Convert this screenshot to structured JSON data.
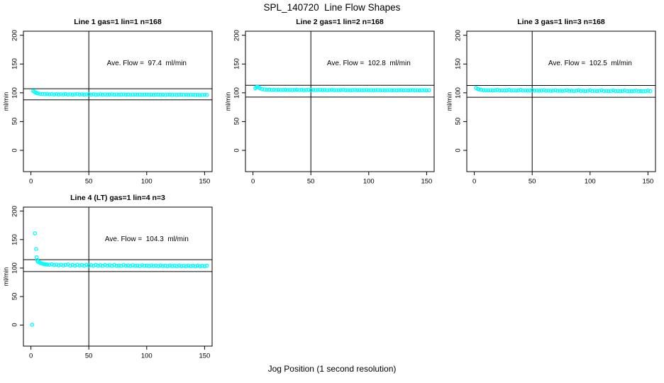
{
  "page": {
    "title": "SPL_140720  Line Flow Shapes",
    "xlabel": "Jog Position (1 second resolution)",
    "background": "#ffffff",
    "point_color": "#00ffff",
    "line_color": "#000000"
  },
  "chart_data": [
    {
      "type": "scatter",
      "title": "Line 1 gas=1 lin=1 n=168",
      "annotation": "Ave. Flow =  97.4  ml/min",
      "annotation_xy": [
        100,
        150
      ],
      "ave_flow_ml_min": 97.4,
      "ylabel": "ml/min",
      "xticks": [
        0,
        50,
        100,
        150
      ],
      "yticks": [
        0,
        50,
        100,
        150,
        200
      ],
      "xlim": [
        -6.5,
        156.5
      ],
      "ylim": [
        -37,
        207
      ],
      "grid": false,
      "vline_x": 50,
      "hlines": [
        107.1,
        87.7
      ],
      "points": [
        [
          2,
          103.2
        ],
        [
          3,
          101.8
        ],
        [
          4,
          100.6
        ],
        [
          5,
          99.6
        ],
        [
          6,
          98.9
        ],
        [
          8,
          98.2
        ],
        [
          10,
          97.9
        ],
        [
          12,
          97.7
        ],
        [
          14,
          97.9
        ],
        [
          16,
          97.4
        ],
        [
          18,
          97.7
        ],
        [
          20,
          97.2
        ],
        [
          22,
          97.6
        ],
        [
          24,
          97.0
        ],
        [
          26,
          97.5
        ],
        [
          28,
          97.2
        ],
        [
          30,
          97.6
        ],
        [
          32,
          97.1
        ],
        [
          34,
          97.4
        ],
        [
          36,
          96.9
        ],
        [
          38,
          97.3
        ],
        [
          40,
          97.6
        ],
        [
          42,
          97.0
        ],
        [
          44,
          97.4
        ],
        [
          46,
          96.8
        ],
        [
          48,
          97.2
        ],
        [
          50,
          97.5
        ],
        [
          52,
          96.9
        ],
        [
          54,
          97.3
        ],
        [
          56,
          96.8
        ],
        [
          58,
          97.1
        ],
        [
          60,
          97.4
        ],
        [
          62,
          96.8
        ],
        [
          64,
          97.2
        ],
        [
          66,
          96.7
        ],
        [
          68,
          97.0
        ],
        [
          70,
          97.3
        ],
        [
          72,
          96.8
        ],
        [
          74,
          97.1
        ],
        [
          76,
          96.6
        ],
        [
          78,
          97.0
        ],
        [
          80,
          97.2
        ],
        [
          82,
          96.7
        ],
        [
          84,
          97.0
        ],
        [
          86,
          96.5
        ],
        [
          88,
          96.9
        ],
        [
          90,
          97.1
        ],
        [
          92,
          96.6
        ],
        [
          94,
          96.9
        ],
        [
          96,
          96.5
        ],
        [
          98,
          96.8
        ],
        [
          100,
          97.0
        ],
        [
          102,
          96.5
        ],
        [
          104,
          96.8
        ],
        [
          106,
          96.4
        ],
        [
          108,
          96.7
        ],
        [
          110,
          96.9
        ],
        [
          112,
          96.4
        ],
        [
          114,
          96.7
        ],
        [
          116,
          96.3
        ],
        [
          118,
          96.6
        ],
        [
          120,
          96.8
        ],
        [
          122,
          96.3
        ],
        [
          124,
          96.6
        ],
        [
          126,
          96.2
        ],
        [
          128,
          96.5
        ],
        [
          130,
          96.7
        ],
        [
          132,
          96.3
        ],
        [
          134,
          96.5
        ],
        [
          136,
          96.2
        ],
        [
          138,
          96.4
        ],
        [
          140,
          96.6
        ],
        [
          142,
          96.2
        ],
        [
          144,
          96.4
        ],
        [
          146,
          96.1
        ],
        [
          148,
          96.3
        ],
        [
          150,
          96.5
        ],
        [
          152,
          96.2
        ]
      ]
    },
    {
      "type": "scatter",
      "title": "Line 2 gas=1 lin=2 n=168",
      "annotation": "Ave. Flow =  102.8  ml/min",
      "annotation_xy": [
        100,
        150
      ],
      "ave_flow_ml_min": 102.8,
      "ylabel": "ml/min",
      "xticks": [
        0,
        50,
        100,
        150
      ],
      "yticks": [
        0,
        50,
        100,
        150,
        200
      ],
      "xlim": [
        -6.5,
        156.5
      ],
      "ylim": [
        -37,
        207
      ],
      "grid": false,
      "vline_x": 50,
      "hlines": [
        113.1,
        92.5
      ],
      "points": [
        [
          2,
          107.8
        ],
        [
          3,
          109.9
        ],
        [
          4,
          110.2
        ],
        [
          5,
          109.3
        ],
        [
          6,
          108.0
        ],
        [
          8,
          106.3
        ],
        [
          10,
          105.8
        ],
        [
          12,
          105.4
        ],
        [
          14,
          105.6
        ],
        [
          16,
          105.1
        ],
        [
          18,
          105.4
        ],
        [
          20,
          104.9
        ],
        [
          22,
          105.3
        ],
        [
          24,
          104.8
        ],
        [
          26,
          105.2
        ],
        [
          28,
          105.4
        ],
        [
          30,
          104.8
        ],
        [
          32,
          105.1
        ],
        [
          34,
          104.7
        ],
        [
          36,
          105.0
        ],
        [
          38,
          105.3
        ],
        [
          40,
          104.7
        ],
        [
          42,
          105.0
        ],
        [
          44,
          104.6
        ],
        [
          46,
          104.9
        ],
        [
          48,
          105.2
        ],
        [
          50,
          104.7
        ],
        [
          52,
          105.0
        ],
        [
          54,
          104.6
        ],
        [
          56,
          104.9
        ],
        [
          58,
          105.1
        ],
        [
          60,
          104.6
        ],
        [
          62,
          104.9
        ],
        [
          64,
          104.5
        ],
        [
          66,
          104.8
        ],
        [
          68,
          105.0
        ],
        [
          70,
          104.6
        ],
        [
          72,
          104.8
        ],
        [
          74,
          104.5
        ],
        [
          76,
          104.7
        ],
        [
          78,
          105.0
        ],
        [
          80,
          104.5
        ],
        [
          82,
          104.8
        ],
        [
          84,
          104.4
        ],
        [
          86,
          104.7
        ],
        [
          88,
          104.9
        ],
        [
          90,
          104.5
        ],
        [
          92,
          104.7
        ],
        [
          94,
          104.4
        ],
        [
          96,
          104.6
        ],
        [
          98,
          104.9
        ],
        [
          100,
          104.4
        ],
        [
          102,
          104.7
        ],
        [
          104,
          104.3
        ],
        [
          106,
          104.6
        ],
        [
          108,
          104.8
        ],
        [
          110,
          104.4
        ],
        [
          112,
          104.6
        ],
        [
          114,
          104.3
        ],
        [
          116,
          104.5
        ],
        [
          118,
          104.8
        ],
        [
          120,
          104.3
        ],
        [
          122,
          104.6
        ],
        [
          124,
          104.2
        ],
        [
          126,
          104.5
        ],
        [
          128,
          104.7
        ],
        [
          130,
          104.3
        ],
        [
          132,
          104.5
        ],
        [
          134,
          104.2
        ],
        [
          136,
          104.4
        ],
        [
          138,
          104.7
        ],
        [
          140,
          104.2
        ],
        [
          142,
          104.5
        ],
        [
          144,
          104.1
        ],
        [
          146,
          104.4
        ],
        [
          148,
          104.6
        ],
        [
          150,
          104.2
        ],
        [
          152,
          104.4
        ]
      ]
    },
    {
      "type": "scatter",
      "title": "Line 3 gas=1 lin=3 n=168",
      "annotation": "Ave. Flow =  102.5  ml/min",
      "annotation_xy": [
        100,
        150
      ],
      "ave_flow_ml_min": 102.5,
      "ylabel": "ml/min",
      "xticks": [
        0,
        50,
        100,
        150
      ],
      "yticks": [
        0,
        50,
        100,
        150,
        200
      ],
      "xlim": [
        -6.5,
        156.5
      ],
      "ylim": [
        -37,
        207
      ],
      "grid": false,
      "vline_x": 50,
      "hlines": [
        112.8,
        92.3
      ],
      "points": [
        [
          1.5,
          108.6
        ],
        [
          3,
          106.8
        ],
        [
          4,
          105.9
        ],
        [
          6,
          105.1
        ],
        [
          8,
          104.6
        ],
        [
          10,
          104.4
        ],
        [
          12,
          104.2
        ],
        [
          14,
          104.5
        ],
        [
          16,
          104.0
        ],
        [
          18,
          104.3
        ],
        [
          20,
          105.2
        ],
        [
          22,
          103.9
        ],
        [
          24,
          104.2
        ],
        [
          26,
          103.8
        ],
        [
          28,
          104.1
        ],
        [
          30,
          105.0
        ],
        [
          32,
          103.8
        ],
        [
          34,
          104.1
        ],
        [
          36,
          103.7
        ],
        [
          38,
          104.0
        ],
        [
          40,
          104.9
        ],
        [
          42,
          103.7
        ],
        [
          44,
          104.0
        ],
        [
          46,
          103.6
        ],
        [
          48,
          103.9
        ],
        [
          50,
          104.8
        ],
        [
          52,
          103.6
        ],
        [
          54,
          103.9
        ],
        [
          56,
          103.5
        ],
        [
          58,
          103.8
        ],
        [
          60,
          104.7
        ],
        [
          62,
          103.5
        ],
        [
          64,
          103.8
        ],
        [
          66,
          103.4
        ],
        [
          68,
          103.7
        ],
        [
          70,
          104.6
        ],
        [
          72,
          103.4
        ],
        [
          74,
          103.7
        ],
        [
          76,
          103.3
        ],
        [
          78,
          103.6
        ],
        [
          80,
          104.5
        ],
        [
          82,
          103.3
        ],
        [
          84,
          103.6
        ],
        [
          86,
          103.2
        ],
        [
          88,
          103.5
        ],
        [
          90,
          104.4
        ],
        [
          92,
          103.2
        ],
        [
          94,
          103.5
        ],
        [
          96,
          103.1
        ],
        [
          98,
          103.4
        ],
        [
          100,
          104.3
        ],
        [
          102,
          103.1
        ],
        [
          104,
          103.4
        ],
        [
          106,
          103.0
        ],
        [
          108,
          103.3
        ],
        [
          110,
          104.2
        ],
        [
          112,
          103.0
        ],
        [
          114,
          103.3
        ],
        [
          116,
          102.9
        ],
        [
          118,
          103.2
        ],
        [
          120,
          104.1
        ],
        [
          122,
          102.9
        ],
        [
          124,
          103.2
        ],
        [
          126,
          102.8
        ],
        [
          128,
          103.1
        ],
        [
          130,
          104.0
        ],
        [
          132,
          102.8
        ],
        [
          134,
          103.1
        ],
        [
          136,
          102.7
        ],
        [
          138,
          103.0
        ],
        [
          140,
          103.9
        ],
        [
          142,
          102.7
        ],
        [
          144,
          103.0
        ],
        [
          146,
          102.6
        ],
        [
          148,
          102.9
        ],
        [
          150,
          103.8
        ],
        [
          152,
          102.8
        ]
      ]
    },
    {
      "type": "scatter",
      "title": "Line 4 (LT) gas=1 lin=4 n=3",
      "annotation": "Ave. Flow =  104.3  ml/min",
      "annotation_xy": [
        100,
        150
      ],
      "ave_flow_ml_min": 104.3,
      "ylabel": "ml/min",
      "xticks": [
        0,
        50,
        100,
        150
      ],
      "yticks": [
        0,
        50,
        100,
        150,
        200
      ],
      "xlim": [
        -6.5,
        156.5
      ],
      "ylim": [
        -37,
        207
      ],
      "grid": false,
      "vline_x": 50,
      "hlines": [
        114.7,
        93.9
      ],
      "points": [
        [
          1,
          0.5
        ],
        [
          3.5,
          161
        ],
        [
          4.5,
          133.5
        ],
        [
          5,
          119
        ],
        [
          5.5,
          113.5
        ],
        [
          6,
          111.5
        ],
        [
          7,
          110.2
        ],
        [
          8,
          109.1
        ],
        [
          9,
          108.3
        ],
        [
          10,
          107.7
        ],
        [
          11,
          107.2
        ],
        [
          12,
          106.8
        ],
        [
          13,
          106.5
        ],
        [
          14,
          106.2
        ],
        [
          16,
          105.9
        ],
        [
          18,
          106.6
        ],
        [
          20,
          105.2
        ],
        [
          22,
          106.1
        ],
        [
          24,
          104.8
        ],
        [
          26,
          105.8
        ],
        [
          28,
          104.6
        ],
        [
          30,
          105.6
        ],
        [
          32,
          106.3
        ],
        [
          34,
          104.5
        ],
        [
          36,
          105.4
        ],
        [
          38,
          104.3
        ],
        [
          40,
          105.9
        ],
        [
          42,
          104.6
        ],
        [
          44,
          105.3
        ],
        [
          46,
          104.2
        ],
        [
          48,
          105.7
        ],
        [
          50,
          104.4
        ],
        [
          52,
          105.1
        ],
        [
          54,
          104.1
        ],
        [
          56,
          105.5
        ],
        [
          58,
          104.3
        ],
        [
          60,
          105.0
        ],
        [
          62,
          103.9
        ],
        [
          64,
          105.4
        ],
        [
          66,
          104.2
        ],
        [
          68,
          104.9
        ],
        [
          70,
          103.8
        ],
        [
          72,
          105.2
        ],
        [
          74,
          104.0
        ],
        [
          76,
          104.7
        ],
        [
          78,
          103.9
        ],
        [
          80,
          105.1
        ],
        [
          82,
          104.1
        ],
        [
          84,
          104.6
        ],
        [
          86,
          103.7
        ],
        [
          88,
          105.0
        ],
        [
          90,
          103.9
        ],
        [
          92,
          104.5
        ],
        [
          94,
          103.6
        ],
        [
          96,
          104.9
        ],
        [
          98,
          103.8
        ],
        [
          100,
          104.4
        ],
        [
          102,
          103.5
        ],
        [
          104,
          104.8
        ],
        [
          106,
          103.7
        ],
        [
          108,
          104.3
        ],
        [
          110,
          103.4
        ],
        [
          112,
          104.7
        ],
        [
          114,
          103.6
        ],
        [
          116,
          104.2
        ],
        [
          118,
          103.3
        ],
        [
          120,
          104.6
        ],
        [
          122,
          103.5
        ],
        [
          124,
          104.1
        ],
        [
          126,
          103.2
        ],
        [
          128,
          104.5
        ],
        [
          130,
          103.4
        ],
        [
          132,
          104.0
        ],
        [
          134,
          103.1
        ],
        [
          136,
          104.4
        ],
        [
          138,
          103.3
        ],
        [
          140,
          103.9
        ],
        [
          142,
          103.0
        ],
        [
          144,
          104.3
        ],
        [
          146,
          103.2
        ],
        [
          148,
          103.8
        ],
        [
          150,
          103.1
        ],
        [
          152,
          104.2
        ]
      ]
    }
  ]
}
